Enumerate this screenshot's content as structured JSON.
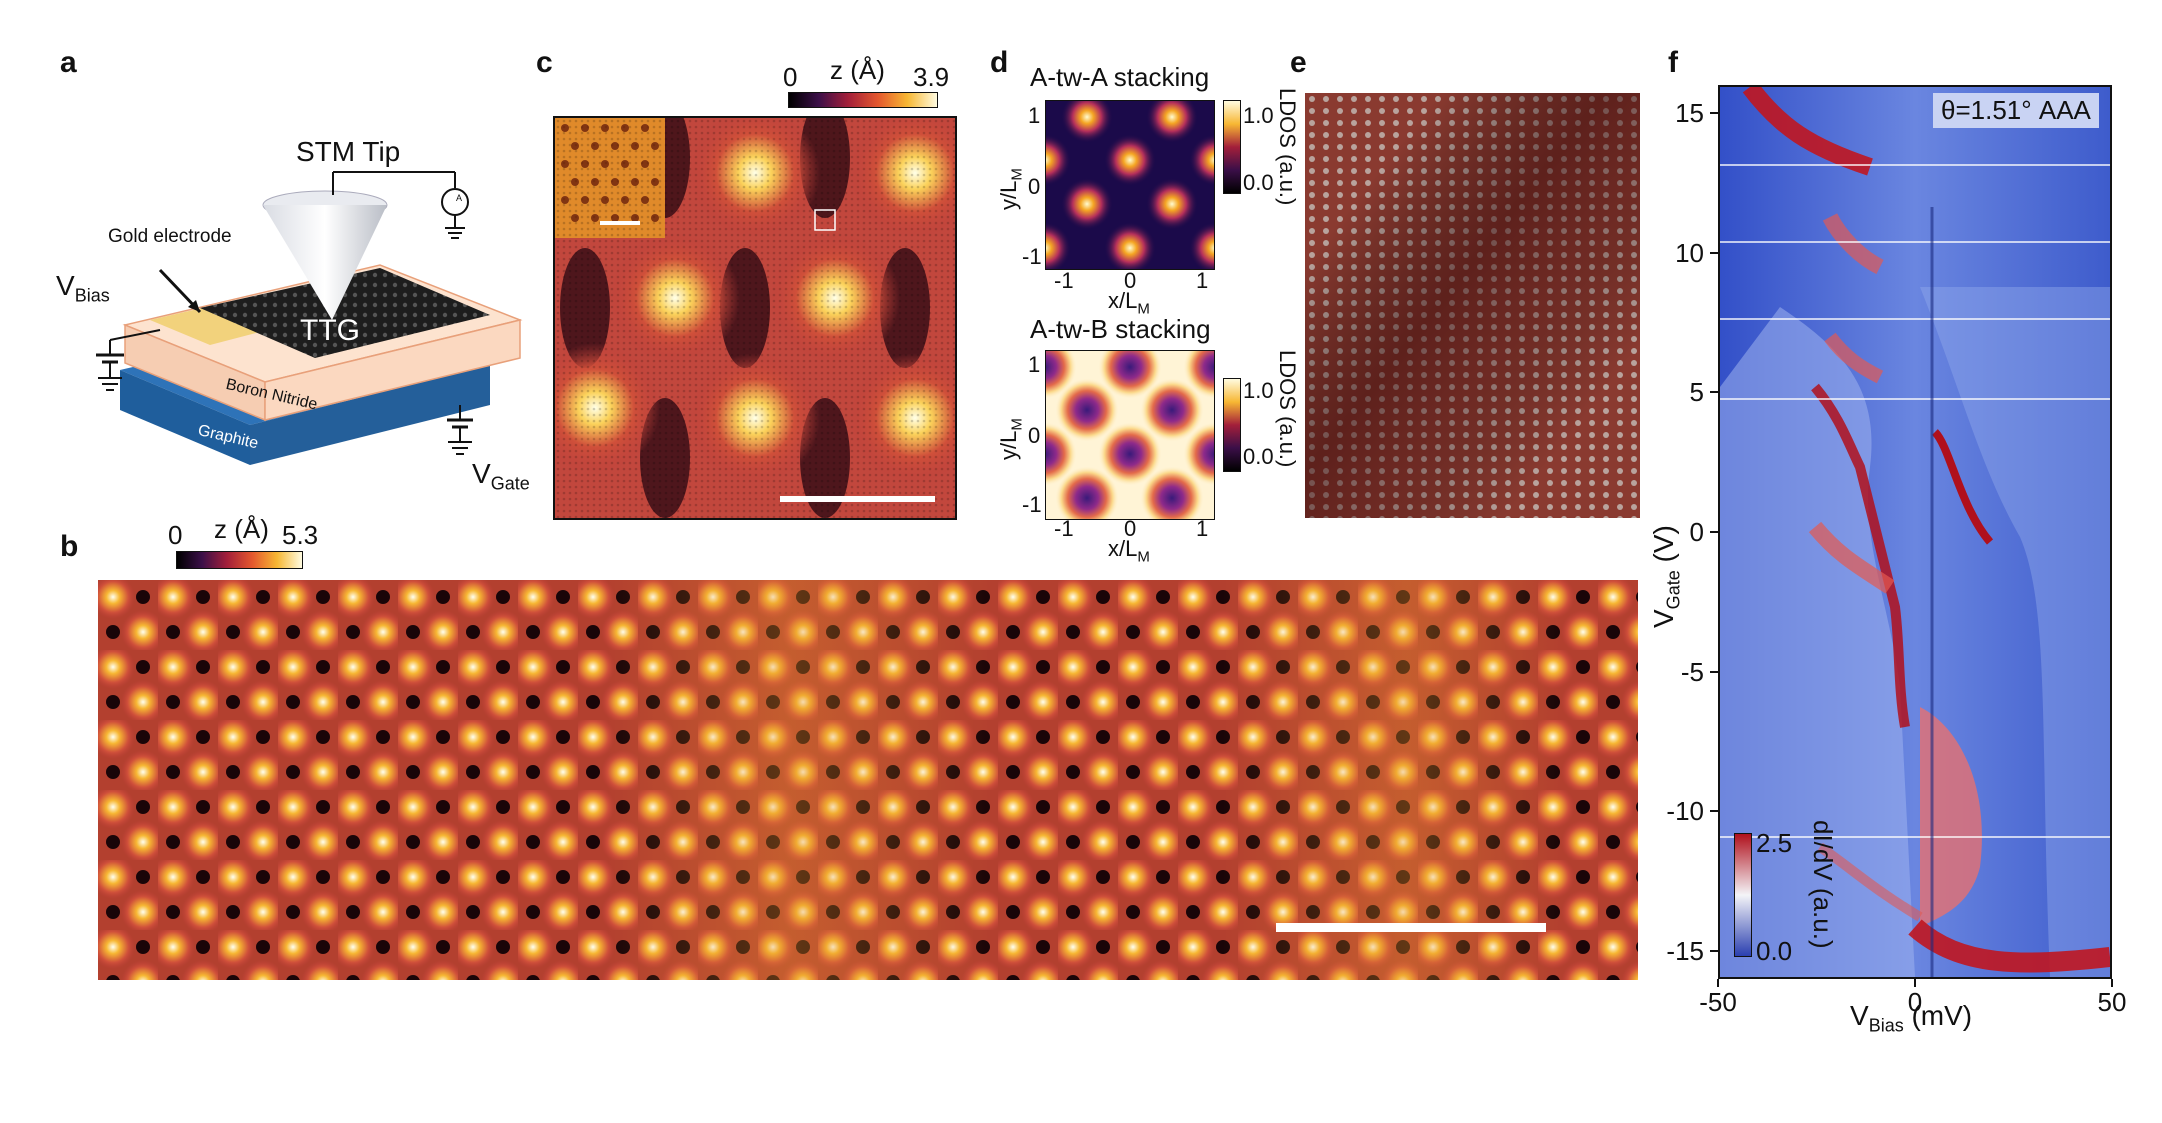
{
  "panel_labels": {
    "a": "a",
    "b": "b",
    "c": "c",
    "d": "d",
    "e": "e",
    "f": "f"
  },
  "panel_a": {
    "tip_label": "STM Tip",
    "electrode_label": "Gold electrode",
    "vbias_main": "V",
    "vbias_sub": "Bias",
    "sample_label": "TTG",
    "bn_label": "Boron Nitride",
    "graphite_label": "Graphite",
    "vgate_main": "V",
    "vgate_sub": "Gate",
    "ammeter": "A"
  },
  "panel_b": {
    "cbar_title": "z (Å)",
    "cbar_min": "0",
    "cbar_max": "5.3"
  },
  "panel_c": {
    "cbar_title": "z (Å)",
    "cbar_min": "0",
    "cbar_max": "3.9"
  },
  "panel_d": {
    "top": {
      "title": "A-tw-A stacking",
      "cbar_title": "LDOS (a.u.)",
      "cbar_max": "1.0",
      "cbar_min": "0.0",
      "xlabel_main": "x/L",
      "xlabel_sub": "M",
      "ylabel_main": "y/L",
      "ylabel_sub": "M",
      "xticks": [
        "-1",
        "0",
        "1"
      ],
      "yticks": [
        "1",
        "0",
        "-1"
      ]
    },
    "bottom": {
      "title": "A-tw-B stacking",
      "cbar_title": "LDOS (a.u.)",
      "cbar_max": "1.0",
      "cbar_min": "0.0",
      "xlabel_main": "x/L",
      "xlabel_sub": "M",
      "ylabel_main": "y/L",
      "ylabel_sub": "M",
      "xticks": [
        "-1",
        "0",
        "1"
      ],
      "yticks": [
        "1",
        "0",
        "-1"
      ]
    }
  },
  "panel_f": {
    "annotation": "θ=1.51° AAA",
    "xlabel_main": "V",
    "xlabel_sub": "Bias",
    "xlabel_unit": " (mV)",
    "ylabel_main": "V",
    "ylabel_sub": "Gate",
    "ylabel_unit": " (V)",
    "cbar_title": "dI/dV (a.u.)",
    "cbar_max": "2.5",
    "cbar_min": "0.0"
  },
  "chart_data": [
    {
      "type": "heatmap",
      "title": "",
      "xlabel": "VBias (mV)",
      "ylabel": "VGate (V)",
      "xlim": [
        -50,
        50
      ],
      "ylim": [
        -16,
        16
      ],
      "xticks": [
        -50,
        0,
        50
      ],
      "yticks": [
        15,
        10,
        5,
        0,
        -5,
        -10,
        -15
      ],
      "colorbar": {
        "label": "dI/dV (a.u.)",
        "range": [
          0.0,
          2.5
        ]
      },
      "annotation": "θ=1.51° AAA",
      "colors": {
        "low": "#2a3fb0",
        "mid": "#f4f4f8",
        "high": "#b0101c"
      }
    }
  ]
}
